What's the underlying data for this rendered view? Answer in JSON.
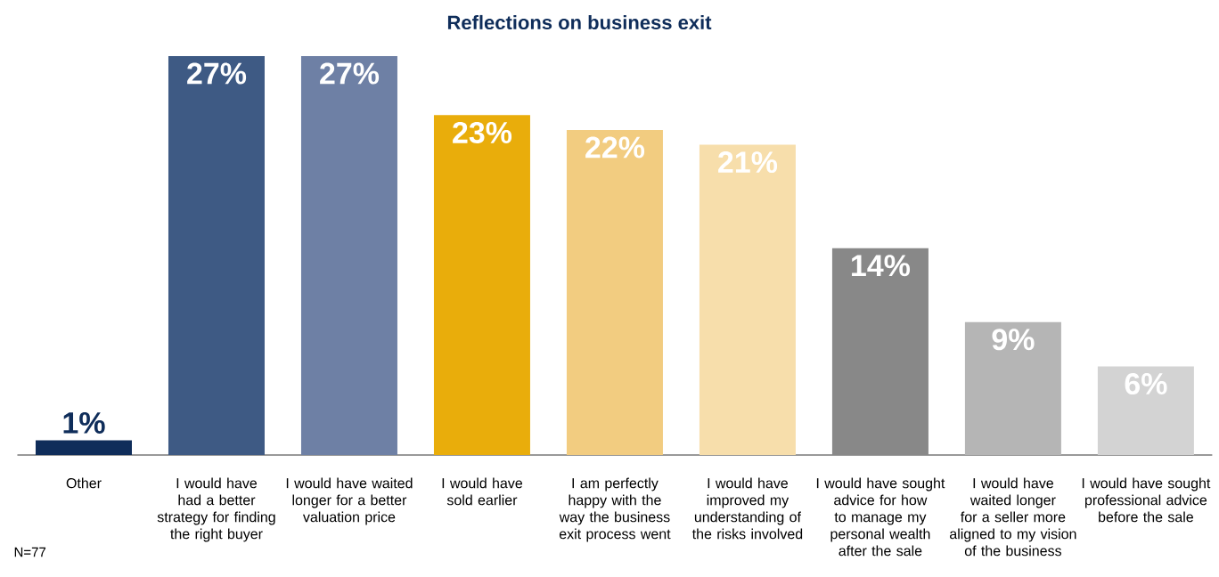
{
  "chart_data": {
    "type": "bar",
    "title": "Reflections on business exit",
    "categories": [
      "Other",
      "I would have had a better strategy for finding the right buyer",
      "I would have waited longer for a better valuation price",
      "I would have sold earlier",
      "I am perfectly happy with the way the business exit process went",
      "I would have improved my understanding of the risks involved",
      "I would have sought advice for how to manage my personal wealth after the sale",
      "I would have waited longer for a seller more aligned to my vision of the business",
      "I would have sought professional advice before the sale"
    ],
    "values": [
      1,
      27,
      27,
      23,
      22,
      21,
      14,
      9,
      6
    ],
    "colors": [
      "#0f2d5a",
      "#3e5a84",
      "#6e80a5",
      "#e9ad0b",
      "#f2cc80",
      "#f7deab",
      "#888888",
      "#b5b5b5",
      "#d3d3d3"
    ],
    "value_labels": [
      "1%",
      "27%",
      "27%",
      "23%",
      "22%",
      "21%",
      "14%",
      "9%",
      "6%"
    ],
    "annotations": [
      "N=77"
    ]
  }
}
